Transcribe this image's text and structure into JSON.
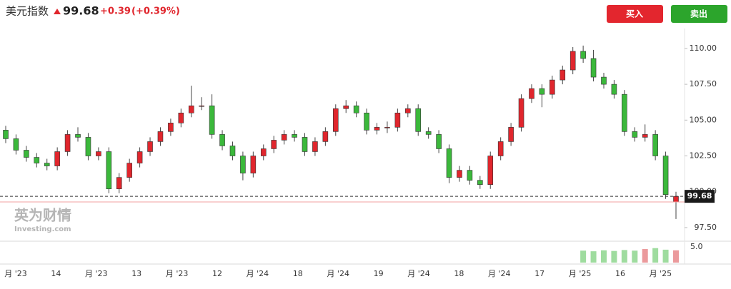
{
  "header": {
    "name": "美元指数",
    "price": "99.68",
    "change": "+0.39",
    "change_pct": "(+0.39%)"
  },
  "buttons": {
    "buy": "买入",
    "sell": "卖出"
  },
  "watermark": {
    "brand": "英为财情",
    "site": "Investing.com"
  },
  "chart_data": {
    "type": "candlestick",
    "open": [
      104.3,
      103.7,
      102.9,
      102.4,
      102.0,
      101.8,
      102.8,
      104.0,
      103.8,
      102.5,
      102.8,
      100.2,
      101.0,
      102.0,
      102.8,
      103.5,
      104.2,
      104.8,
      105.5,
      106.0,
      106.0,
      104.0,
      103.2,
      102.5,
      101.3,
      102.5,
      103.0,
      103.6,
      104.0,
      103.8,
      102.8,
      103.5,
      104.2,
      105.8,
      106.0,
      105.5,
      104.3,
      104.5,
      104.5,
      105.5,
      105.8,
      104.2,
      104.0,
      103.0,
      101.0,
      101.5,
      100.8,
      100.5,
      102.5,
      103.5,
      104.5,
      106.5,
      107.2,
      106.8,
      107.8,
      108.5,
      109.8,
      109.3,
      108.0,
      107.5,
      106.8,
      104.2,
      103.8,
      104.0,
      102.5,
      99.29
    ],
    "high": [
      104.6,
      104.0,
      103.2,
      102.7,
      102.3,
      103.1,
      104.3,
      104.5,
      104.1,
      103.1,
      103.1,
      101.3,
      102.3,
      103.1,
      103.8,
      104.5,
      105.1,
      105.8,
      107.4,
      106.6,
      106.8,
      104.3,
      103.5,
      102.8,
      102.8,
      103.3,
      103.9,
      104.3,
      104.3,
      104.1,
      103.8,
      104.5,
      106.1,
      106.4,
      106.3,
      105.8,
      104.8,
      104.9,
      105.8,
      106.1,
      106.1,
      104.5,
      104.3,
      103.3,
      101.8,
      101.8,
      101.1,
      102.8,
      103.8,
      104.8,
      106.8,
      107.5,
      107.5,
      108.1,
      108.8,
      110.1,
      110.2,
      109.9,
      108.3,
      107.8,
      107.1,
      104.5,
      104.7,
      104.3,
      102.8,
      100.0
    ],
    "low": [
      103.4,
      102.6,
      102.1,
      101.7,
      101.5,
      101.5,
      102.5,
      103.5,
      102.2,
      102.2,
      99.9,
      99.9,
      100.7,
      101.7,
      102.5,
      103.2,
      103.9,
      104.5,
      105.2,
      105.7,
      103.7,
      102.9,
      102.2,
      100.8,
      101.0,
      102.2,
      102.7,
      103.3,
      103.5,
      102.5,
      102.5,
      103.2,
      103.9,
      105.5,
      105.2,
      104.0,
      104.0,
      104.1,
      104.2,
      105.2,
      103.9,
      103.7,
      102.7,
      100.6,
      100.7,
      100.5,
      100.2,
      100.2,
      102.2,
      103.2,
      104.2,
      106.2,
      105.9,
      106.5,
      107.5,
      108.2,
      109.0,
      107.7,
      107.2,
      106.5,
      103.9,
      103.5,
      103.5,
      102.2,
      99.5,
      98.1
    ],
    "close": [
      103.7,
      102.9,
      102.4,
      102.0,
      101.8,
      102.8,
      104.0,
      103.8,
      102.5,
      102.8,
      100.2,
      101.0,
      102.0,
      102.8,
      103.5,
      104.2,
      104.8,
      105.5,
      106.0,
      106.0,
      104.0,
      103.2,
      102.5,
      101.3,
      102.5,
      103.0,
      103.6,
      104.0,
      103.8,
      102.8,
      103.5,
      104.2,
      105.8,
      106.0,
      105.5,
      104.3,
      104.5,
      104.5,
      105.5,
      105.8,
      104.2,
      104.0,
      103.0,
      101.0,
      101.5,
      100.8,
      100.5,
      102.5,
      103.5,
      104.5,
      106.5,
      107.2,
      106.8,
      107.8,
      108.5,
      109.8,
      109.3,
      108.0,
      107.5,
      106.8,
      104.2,
      103.8,
      104.0,
      102.5,
      99.8,
      99.68
    ],
    "up_color": "#e0262d",
    "down_color": "#3bb83b",
    "ylim": [
      96.55,
      111.39
    ],
    "yticks": [
      {
        "value": 97.5,
        "label": "97.50"
      },
      {
        "value": 100,
        "label": "100.00"
      },
      {
        "value": 102.5,
        "label": "102.50"
      },
      {
        "value": 105,
        "label": "105.00"
      },
      {
        "value": 107.5,
        "label": "107.50"
      },
      {
        "value": 110,
        "label": "110.00"
      }
    ],
    "last_price": 99.68,
    "prev_close": 99.29,
    "xlabels": [
      "月 '23",
      "14",
      "月 '23",
      "13",
      "月 '23",
      "12",
      "月 '24",
      "18",
      "月 '24",
      "19",
      "月 '24",
      "18",
      "月 '24",
      "17",
      "月 '25",
      "16",
      "月 '25"
    ],
    "volume": [
      null,
      null,
      null,
      null,
      null,
      null,
      null,
      null,
      null,
      null,
      null,
      null,
      null,
      null,
      null,
      null,
      null,
      null,
      null,
      null,
      null,
      null,
      null,
      null,
      null,
      null,
      null,
      null,
      null,
      null,
      null,
      null,
      null,
      null,
      null,
      null,
      null,
      null,
      null,
      null,
      null,
      null,
      null,
      null,
      null,
      null,
      null,
      null,
      null,
      null,
      null,
      null,
      null,
      null,
      null,
      null,
      3.8,
      3.6,
      3.9,
      3.7,
      4.0,
      3.8,
      4.3,
      4.6,
      4.1,
      3.9
    ],
    "volume_ylim": [
      0,
      6.8
    ],
    "volume_yticks": [
      {
        "value": 5,
        "label": "5.0"
      }
    ],
    "volume_up_color": "#eb9a9c",
    "volume_down_color": "#9fdc9f"
  }
}
